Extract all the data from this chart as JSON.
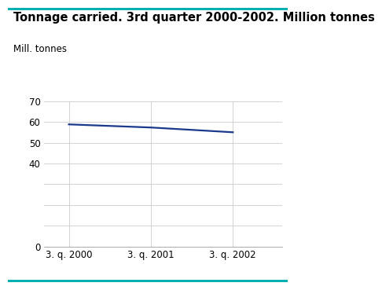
{
  "title": "Tonnage carried. 3rd quarter 2000-2002. Million tonnes",
  "ylabel": "Mill. tonnes",
  "x_labels": [
    "3. q. 2000",
    "3. q. 2001",
    "3. q. 2002"
  ],
  "x_values": [
    0,
    1,
    2
  ],
  "y_values": [
    58.8,
    57.3,
    55.0
  ],
  "line_color": "#1a3a8c",
  "line_width": 1.6,
  "ylim": [
    0,
    70
  ],
  "yticks": [
    0,
    10,
    20,
    30,
    40,
    50,
    60,
    70
  ],
  "show_ytick_labels": [
    0,
    40,
    50,
    60,
    70
  ],
  "grid_color": "#cccccc",
  "background_color": "#ffffff",
  "title_fontsize": 10.5,
  "ylabel_fontsize": 8.5,
  "tick_fontsize": 8.5,
  "teal_color": "#00b0b0"
}
